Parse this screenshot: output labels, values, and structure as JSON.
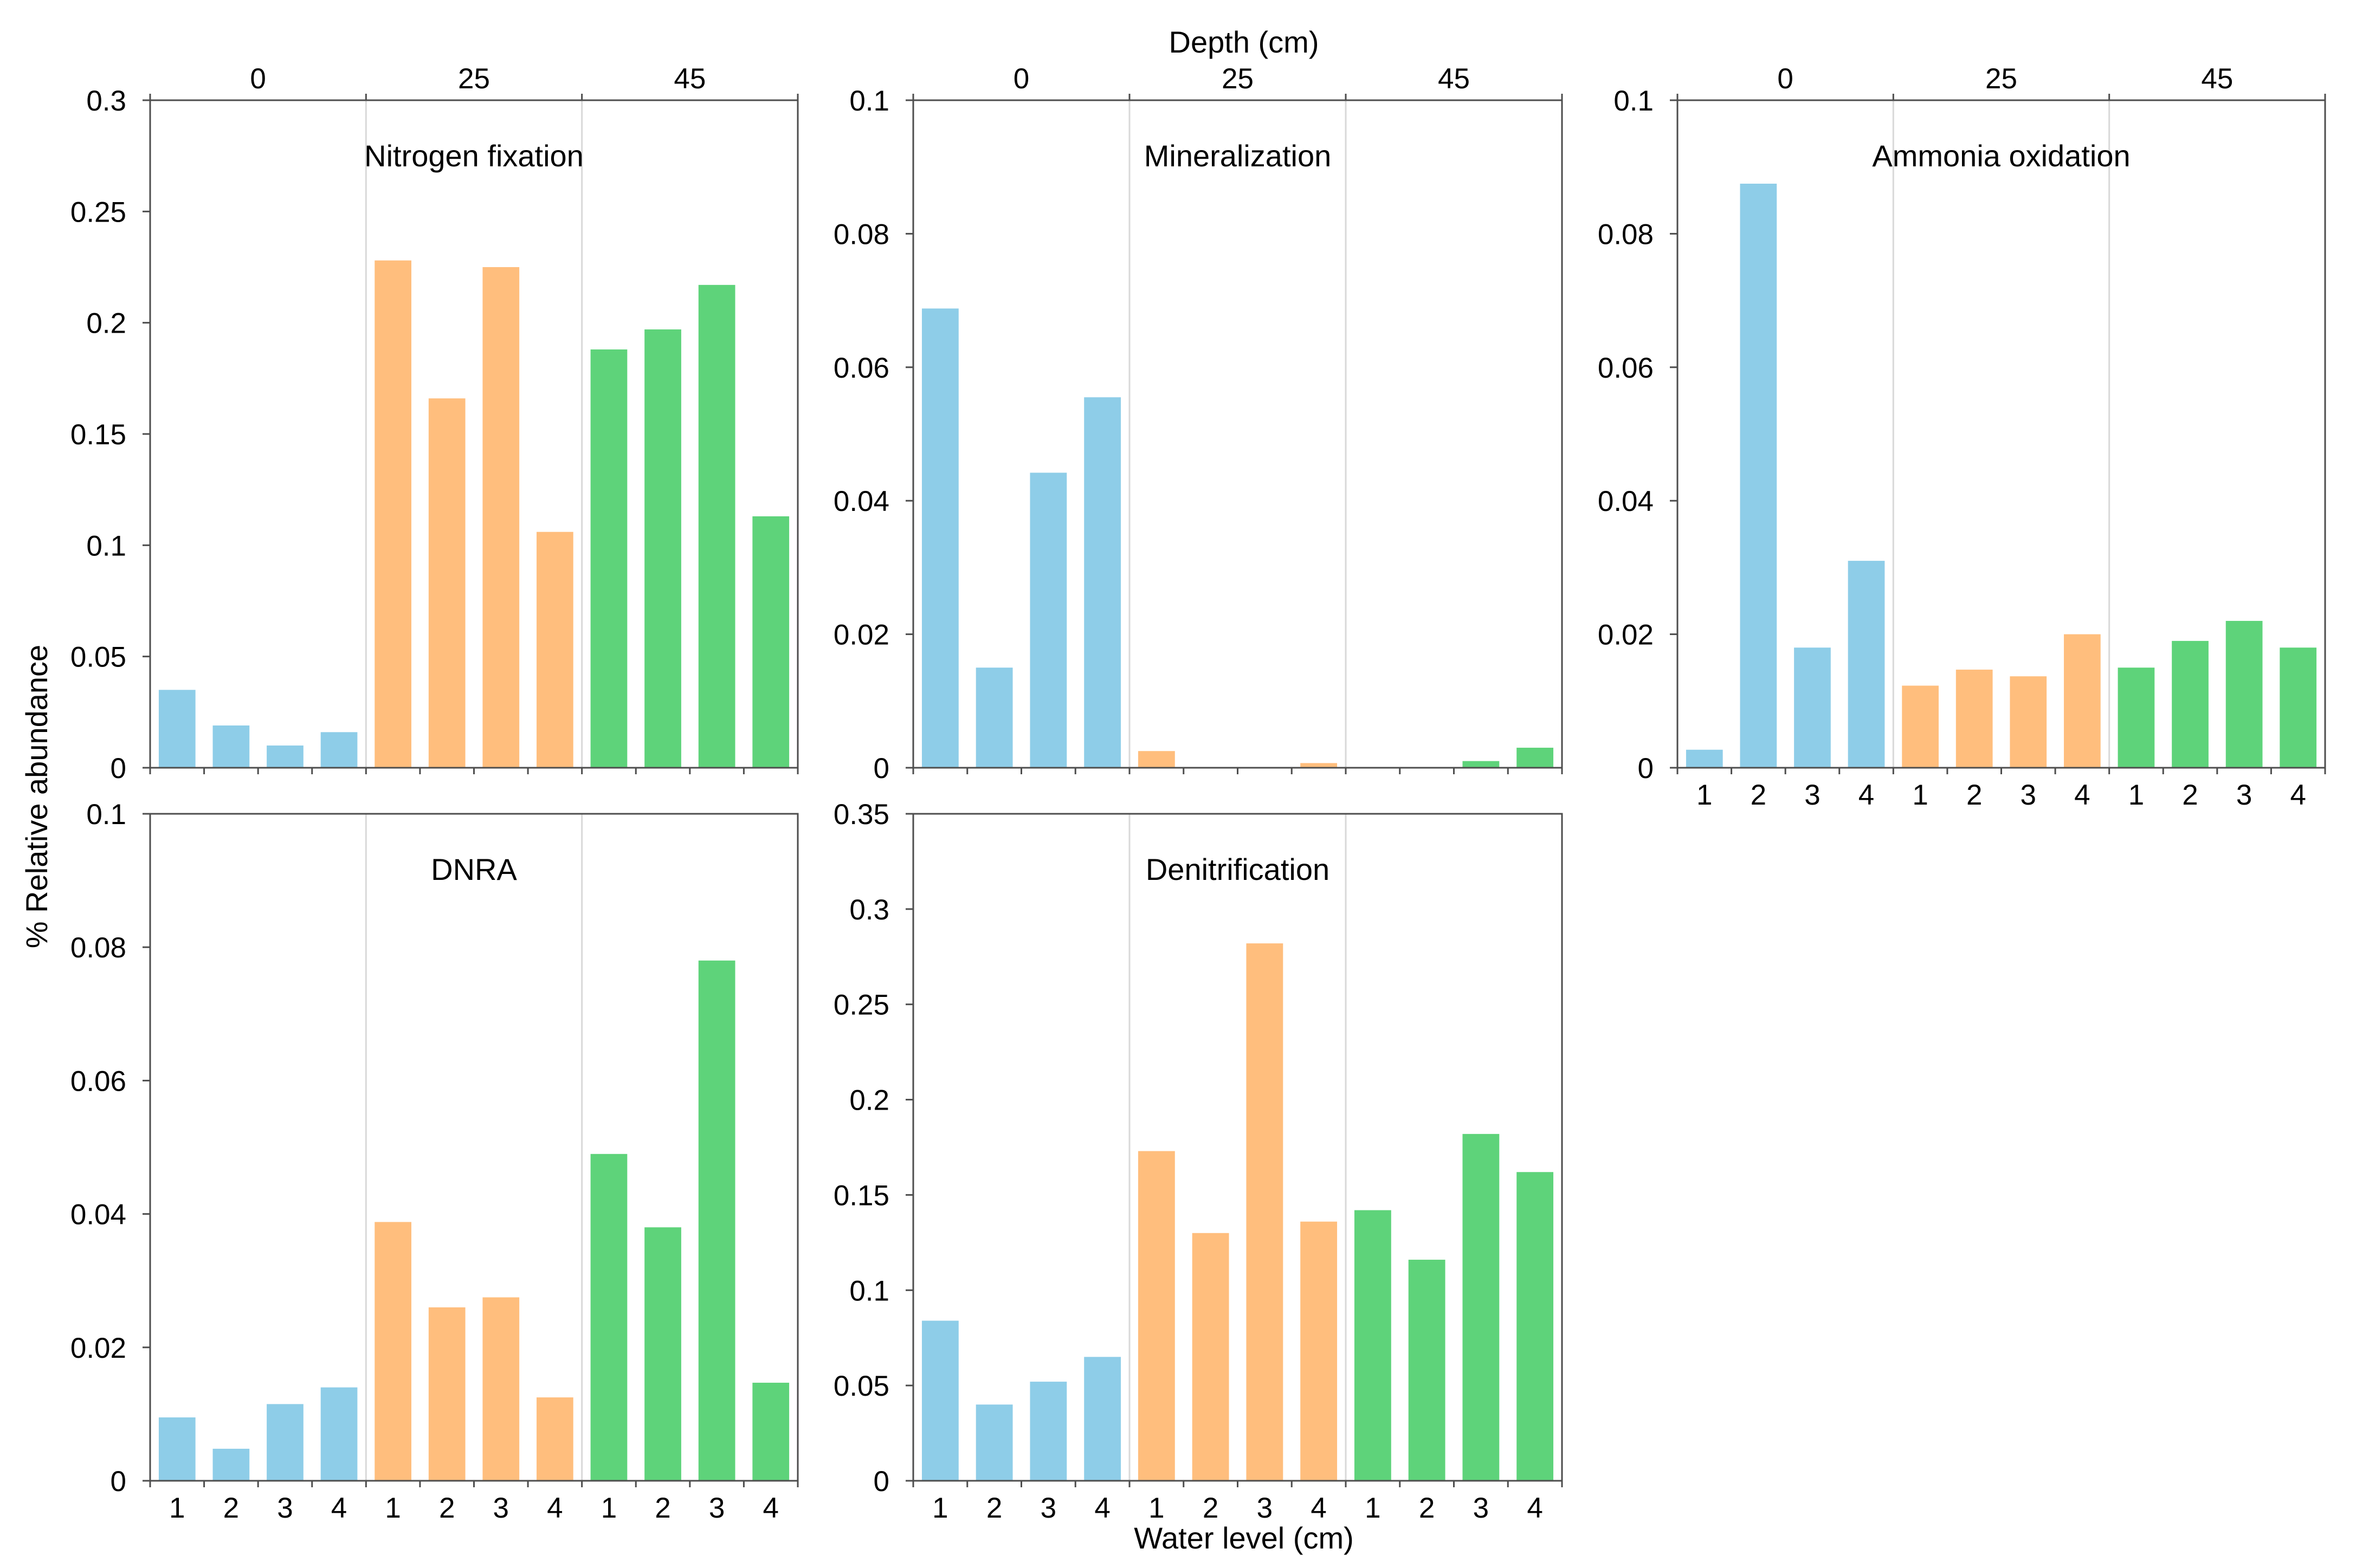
{
  "figure": {
    "top_axis_title": "Depth (cm)",
    "bottom_axis_title": "Water level (cm)",
    "y_axis_title": "% Relative abundance"
  },
  "depth_groups": [
    "0",
    "25",
    "45"
  ],
  "water_levels": [
    "1",
    "2",
    "3",
    "4"
  ],
  "colors": {
    "0": "#8ecde8",
    "25": "#ffbe7d",
    "45": "#5ed37a",
    "frame": "#4d4d4d",
    "divider": "#d9d9d9"
  },
  "chart_data": [
    {
      "type": "bar",
      "title": "Nitrogen fixation",
      "xlabel": "Water level (cm)",
      "ylabel": "% Relative abundance",
      "ylim": [
        0,
        0.3
      ],
      "yticks": [
        "0",
        "0.05",
        "0.1",
        "0.15",
        "0.2",
        "0.25",
        "0.3"
      ],
      "categories": [
        "1",
        "2",
        "3",
        "4"
      ],
      "series": [
        {
          "name": "0",
          "values": [
            0.035,
            0.019,
            0.01,
            0.016
          ]
        },
        {
          "name": "25",
          "values": [
            0.228,
            0.166,
            0.225,
            0.106
          ]
        },
        {
          "name": "45",
          "values": [
            0.188,
            0.197,
            0.217,
            0.113
          ]
        }
      ]
    },
    {
      "type": "bar",
      "title": "Mineralization",
      "xlabel": "Water level (cm)",
      "ylabel": "% Relative abundance",
      "ylim": [
        0,
        0.1
      ],
      "yticks": [
        "0",
        "0.02",
        "0.04",
        "0.06",
        "0.08",
        "0.1"
      ],
      "categories": [
        "1",
        "2",
        "3",
        "4"
      ],
      "series": [
        {
          "name": "0",
          "values": [
            0.0688,
            0.015,
            0.0442,
            0.0555
          ]
        },
        {
          "name": "25",
          "values": [
            0.0025,
            0.0,
            0.0,
            0.0007
          ]
        },
        {
          "name": "45",
          "values": [
            0.0,
            0.0,
            0.001,
            0.003
          ]
        }
      ]
    },
    {
      "type": "bar",
      "title": "Ammonia oxidation",
      "xlabel": "Water level (cm)",
      "ylabel": "% Relative abundance",
      "ylim": [
        0,
        0.1
      ],
      "yticks": [
        "0",
        "0.02",
        "0.04",
        "0.06",
        "0.08",
        "0.1"
      ],
      "categories": [
        "1",
        "2",
        "3",
        "4"
      ],
      "series": [
        {
          "name": "0",
          "values": [
            0.0027,
            0.0875,
            0.018,
            0.031
          ]
        },
        {
          "name": "25",
          "values": [
            0.0123,
            0.0147,
            0.0137,
            0.02
          ]
        },
        {
          "name": "45",
          "values": [
            0.015,
            0.019,
            0.022,
            0.018
          ]
        }
      ]
    },
    {
      "type": "bar",
      "title": "DNRA",
      "xlabel": "Water level (cm)",
      "ylabel": "% Relative abundance",
      "ylim": [
        0,
        0.1
      ],
      "yticks": [
        "0",
        "0.02",
        "0.04",
        "0.06",
        "0.08",
        "0.1"
      ],
      "categories": [
        "1",
        "2",
        "3",
        "4"
      ],
      "series": [
        {
          "name": "0",
          "values": [
            0.0095,
            0.0048,
            0.0115,
            0.014
          ]
        },
        {
          "name": "25",
          "values": [
            0.0388,
            0.026,
            0.0275,
            0.0125
          ]
        },
        {
          "name": "45",
          "values": [
            0.049,
            0.038,
            0.078,
            0.0147
          ]
        }
      ]
    },
    {
      "type": "bar",
      "title": "Denitrification",
      "xlabel": "Water level (cm)",
      "ylabel": "% Relative abundance",
      "ylim": [
        0,
        0.35
      ],
      "yticks": [
        "0",
        "0.05",
        "0.1",
        "0.15",
        "0.2",
        "0.25",
        "0.3",
        "0.35"
      ],
      "categories": [
        "1",
        "2",
        "3",
        "4"
      ],
      "series": [
        {
          "name": "0",
          "values": [
            0.084,
            0.04,
            0.052,
            0.065
          ]
        },
        {
          "name": "25",
          "values": [
            0.173,
            0.13,
            0.282,
            0.136
          ]
        },
        {
          "name": "45",
          "values": [
            0.142,
            0.116,
            0.182,
            0.162
          ]
        }
      ]
    }
  ]
}
